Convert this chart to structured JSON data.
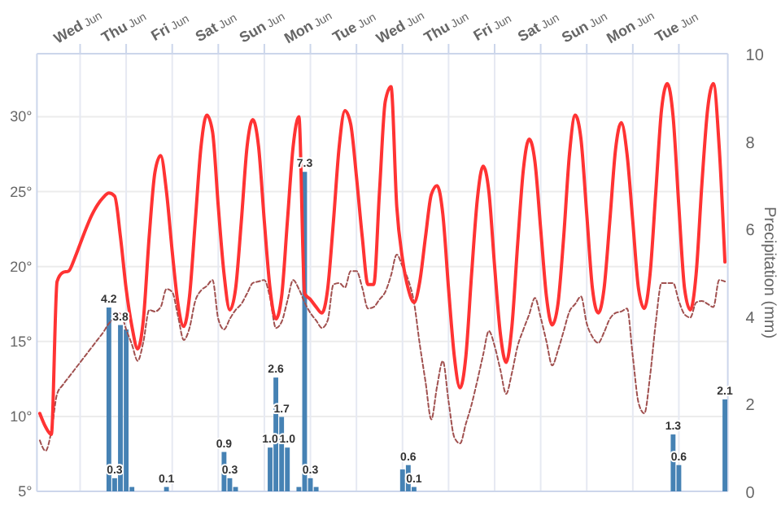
{
  "chart_data": {
    "type": "line",
    "categories": [
      null,
      null,
      null,
      null,
      null,
      null,
      null,
      "Wed Jun",
      null,
      null,
      null,
      null,
      null,
      null,
      null,
      "Thu Jun",
      null,
      null,
      null,
      null,
      null,
      null,
      null,
      "Fri Jun",
      null,
      null,
      null,
      null,
      null,
      null,
      null,
      "Sat Jun",
      null,
      null,
      null,
      null,
      null,
      null,
      null,
      "Sun Jun",
      null,
      null,
      null,
      null,
      null,
      null,
      null,
      "Mon Jun",
      null,
      null,
      null,
      null,
      null,
      null,
      null,
      "Tue Jun",
      null,
      null,
      null,
      null,
      null,
      null,
      null,
      "Wed Jun",
      null,
      null,
      null,
      null,
      null,
      null,
      null,
      "Thu Jun",
      null,
      null,
      null,
      null,
      null,
      null,
      null,
      "Fri Jun",
      null,
      null,
      null,
      null,
      null,
      null,
      null,
      "Sat Jun",
      null,
      null,
      null,
      null,
      null,
      null,
      null,
      "Sun Jun",
      null,
      null,
      null,
      null,
      null,
      null,
      null,
      "Mon Jun",
      null,
      null,
      null,
      null,
      null,
      null,
      null,
      "Tue Jun",
      null,
      null,
      null,
      null,
      null,
      null,
      null,
      null
    ],
    "ylim": [
      5,
      34.2
    ],
    "yticks": [
      {
        "value": 5,
        "label": "5°"
      },
      {
        "value": 10,
        "label": "10°"
      },
      {
        "value": 15,
        "label": "15°"
      },
      {
        "value": 20,
        "label": "20°"
      },
      {
        "value": 25,
        "label": "25°"
      },
      {
        "value": 30,
        "label": "30°"
      }
    ],
    "y2lim": [
      0,
      10
    ],
    "y2ticks": [
      0,
      2,
      4,
      6,
      8,
      10
    ],
    "y2label": "Precipitation (mm)",
    "grid": true,
    "series": [
      {
        "type": "bar",
        "axis": "y2",
        "color": "#4682b4",
        "values": [
          null,
          null,
          null,
          null,
          null,
          null,
          null,
          null,
          null,
          null,
          null,
          null,
          4.2,
          0.3,
          3.8,
          3.7,
          0.1,
          null,
          null,
          null,
          null,
          null,
          0.1,
          null,
          null,
          null,
          null,
          null,
          null,
          null,
          null,
          null,
          0.9,
          0.3,
          0.1,
          null,
          null,
          null,
          null,
          null,
          1.0,
          2.6,
          1.7,
          1.0,
          null,
          0.1,
          7.3,
          0.3,
          0.1,
          null,
          null,
          null,
          null,
          null,
          null,
          null,
          null,
          null,
          null,
          null,
          null,
          null,
          null,
          0.5,
          0.6,
          0.1,
          null,
          null,
          null,
          null,
          null,
          null,
          null,
          null,
          null,
          null,
          null,
          null,
          null,
          null,
          null,
          null,
          null,
          null,
          null,
          null,
          null,
          null,
          null,
          null,
          null,
          null,
          null,
          null,
          null,
          null,
          null,
          null,
          null,
          null,
          null,
          null,
          null,
          null,
          null,
          null,
          null,
          null,
          null,
          null,
          1.3,
          0.6,
          null,
          null,
          null,
          null,
          null,
          null,
          null,
          2.1
        ],
        "value_labels": [
          null,
          null,
          null,
          null,
          null,
          null,
          null,
          null,
          null,
          null,
          null,
          null,
          "4.2",
          "0.3",
          "3.8",
          null,
          null,
          null,
          null,
          null,
          null,
          null,
          "0.1",
          null,
          null,
          null,
          null,
          null,
          null,
          null,
          null,
          null,
          "0.9",
          "0.3",
          null,
          null,
          null,
          null,
          null,
          null,
          "1.0",
          "2.6",
          "1.7",
          "1.0",
          null,
          null,
          "7.3",
          "0.3",
          null,
          null,
          null,
          null,
          null,
          null,
          null,
          null,
          null,
          null,
          null,
          null,
          null,
          null,
          null,
          null,
          "0.6",
          "0.1",
          null,
          null,
          null,
          null,
          null,
          null,
          null,
          null,
          null,
          null,
          null,
          null,
          null,
          null,
          null,
          null,
          null,
          null,
          null,
          null,
          null,
          null,
          null,
          null,
          null,
          null,
          null,
          null,
          null,
          null,
          null,
          null,
          null,
          null,
          null,
          null,
          null,
          null,
          null,
          null,
          null,
          null,
          null,
          null,
          "1.3",
          "0.6",
          null,
          null,
          null,
          null,
          null,
          null,
          null,
          "2.1"
        ]
      },
      {
        "color": "#a0504f",
        "line_style": "dashed",
        "values": [
          8.4,
          7.7,
          9.0,
          11.5,
          12.1,
          12.6,
          13.1,
          13.6,
          14.1,
          14.6,
          15.1,
          15.6,
          16.2,
          16.6,
          16.9,
          15.8,
          14.8,
          13.7,
          15,
          17.1,
          17,
          17.3,
          18.5,
          18.3,
          16.7,
          15.1,
          15.9,
          17.7,
          18.4,
          18.7,
          19.1,
          16.5,
          15.8,
          16.5,
          17.1,
          17.5,
          18.2,
          18.9,
          19,
          19.1,
          17.9,
          15.9,
          16.3,
          17.7,
          19.1,
          18.5,
          17.6,
          16.9,
          16.4,
          15.9,
          16.4,
          18.8,
          18.9,
          18.6,
          19.7,
          19.7,
          18.6,
          17.2,
          17.3,
          17.8,
          18.3,
          19.4,
          20.8,
          20,
          19.1,
          17.6,
          14.8,
          12.3,
          9.8,
          12,
          13.7,
          11,
          8.6,
          8.2,
          9.5,
          10.8,
          12.4,
          14.1,
          15.7,
          14.7,
          13.1,
          11.5,
          12.9,
          14.7,
          15.8,
          16.8,
          17.9,
          16.6,
          15,
          13.4,
          14.4,
          15.7,
          17,
          17.5,
          18,
          16.2,
          15.3,
          14.9,
          15.6,
          16.5,
          16.9,
          17,
          17.2,
          14,
          10.9,
          10.2,
          12.7,
          16.3,
          18.9,
          18.9,
          18.9,
          17.7,
          16.8,
          16.6,
          17.6,
          17.7,
          17.5,
          17.3,
          19.1,
          19
        ]
      },
      {
        "color": "#ff3333",
        "line_style": "solid",
        "values": [
          10.2,
          9.3,
          8.8,
          19,
          19.6,
          19.7,
          20.5,
          21.5,
          22.5,
          23.4,
          24.1,
          24.6,
          24.9,
          24.7,
          22,
          18.5,
          16,
          14.5,
          16.5,
          22,
          26.3,
          27.4,
          25,
          21,
          17.5,
          16,
          18,
          23,
          28,
          30.1,
          29,
          24,
          19.5,
          17.1,
          18.5,
          23,
          28,
          29.8,
          28,
          23,
          18.5,
          16.5,
          18,
          23,
          28,
          30,
          18.2,
          17.8,
          17.3,
          16.9,
          18.5,
          23,
          28,
          30.4,
          29.5,
          26,
          22,
          18.8,
          18.8,
          25,
          31,
          32,
          24,
          20.5,
          18.5,
          17.6,
          19,
          22,
          24.8,
          25.4,
          23.5,
          18.5,
          14,
          11.9,
          14,
          19.5,
          24.5,
          26.7,
          25,
          20,
          15.5,
          13.6,
          16,
          21.5,
          26.5,
          28.5,
          27,
          22.5,
          18,
          16.1,
          17.5,
          22,
          27.5,
          30.1,
          28.5,
          23.5,
          18.5,
          16.9,
          18.5,
          23,
          27.8,
          29.6,
          27.5,
          23,
          18.5,
          17.2,
          19.5,
          25,
          30.5,
          32.2,
          30,
          24,
          18.5,
          17.1,
          19.5,
          25.5,
          30.5,
          32.2,
          28,
          20.3
        ]
      }
    ]
  }
}
